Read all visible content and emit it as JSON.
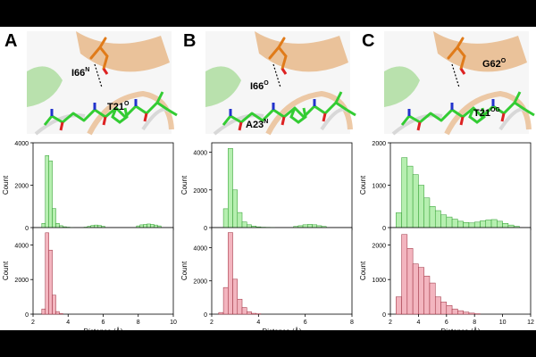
{
  "figure": {
    "background": "#000000",
    "panel_background": "#ffffff",
    "colors": {
      "green_fill": "#b6efb0",
      "green_stroke": "#2a9a2a",
      "red_fill": "#f3b5bf",
      "red_stroke": "#9a2a3a",
      "ribbon": "#e8b88a",
      "ligand_carbon": "#33cc33",
      "residue_carbon": "#e07b1a",
      "nitrogen": "#2233cc",
      "oxygen": "#dd2222"
    },
    "panels": [
      {
        "letter": "A",
        "structure_labels": [
          {
            "base": "I66",
            "sup": "N"
          },
          {
            "base": "T21",
            "sup": "O"
          }
        ]
      },
      {
        "letter": "B",
        "structure_labels": [
          {
            "base": "I66",
            "sup": "O"
          },
          {
            "base": "A23",
            "sup": "N"
          }
        ]
      },
      {
        "letter": "C",
        "structure_labels": [
          {
            "base": "G62",
            "sup": "O"
          },
          {
            "base": "T21",
            "sup": "OG"
          }
        ]
      }
    ]
  },
  "chart_data": [
    {
      "type": "bar",
      "panel": "A",
      "subplot": "top",
      "color": "green",
      "bin_width": 0.2,
      "x": [
        2.6,
        2.8,
        3.0,
        3.2,
        3.4,
        3.6,
        3.8,
        4.0,
        4.2,
        5.0,
        5.2,
        5.4,
        5.6,
        5.8,
        6.0,
        8.0,
        8.2,
        8.4,
        8.6,
        8.8,
        9.0,
        9.2
      ],
      "values": [
        200,
        3400,
        3150,
        900,
        200,
        90,
        40,
        20,
        10,
        20,
        60,
        100,
        120,
        100,
        60,
        80,
        130,
        150,
        170,
        150,
        120,
        80
      ],
      "xlim": [
        2,
        10
      ],
      "ylim": [
        0,
        4000
      ],
      "yticks": [
        0,
        2000,
        4000
      ],
      "xlabel": "",
      "ylabel": "Count"
    },
    {
      "type": "bar",
      "panel": "A",
      "subplot": "bottom",
      "color": "red",
      "bin_width": 0.2,
      "x": [
        2.6,
        2.8,
        3.0,
        3.2,
        3.4,
        3.6
      ],
      "values": [
        300,
        4700,
        3700,
        1100,
        150,
        30
      ],
      "xlim": [
        2,
        10
      ],
      "ylim": [
        0,
        5000
      ],
      "yticks": [
        0,
        2000,
        4000
      ],
      "xticks": [
        2,
        4,
        6,
        8,
        10
      ],
      "xlabel": "Distance (Å)",
      "ylabel": "Count"
    },
    {
      "type": "bar",
      "panel": "B",
      "subplot": "top",
      "color": "green",
      "bin_width": 0.2,
      "x": [
        2.6,
        2.8,
        3.0,
        3.2,
        3.4,
        3.6,
        3.8,
        4.0,
        4.2,
        4.4,
        4.6,
        5.6,
        5.8,
        6.0,
        6.2,
        6.4,
        6.6,
        6.8
      ],
      "values": [
        1000,
        4200,
        2000,
        800,
        300,
        150,
        80,
        40,
        20,
        15,
        10,
        60,
        100,
        150,
        170,
        150,
        100,
        60
      ],
      "xlim": [
        2,
        8
      ],
      "ylim": [
        0,
        4500
      ],
      "yticks": [
        0,
        2000,
        4000
      ],
      "xlabel": "",
      "ylabel": "Count"
    },
    {
      "type": "bar",
      "panel": "B",
      "subplot": "bottom",
      "color": "red",
      "bin_width": 0.2,
      "x": [
        2.4,
        2.6,
        2.8,
        3.0,
        3.2,
        3.4,
        3.6,
        3.8,
        4.0
      ],
      "values": [
        100,
        1600,
        4900,
        2100,
        900,
        400,
        150,
        50,
        20
      ],
      "xlim": [
        2,
        8
      ],
      "ylim": [
        0,
        5200
      ],
      "yticks": [
        0,
        2000,
        4000
      ],
      "xticks": [
        2,
        4,
        6,
        8
      ],
      "xlabel": "Distance (Å)",
      "ylabel": "Count"
    },
    {
      "type": "bar",
      "panel": "C",
      "subplot": "top",
      "color": "green",
      "bin_width": 0.4,
      "x": [
        2.6,
        3.0,
        3.4,
        3.8,
        4.2,
        4.6,
        5.0,
        5.4,
        5.8,
        6.2,
        6.6,
        7.0,
        7.4,
        7.8,
        8.2,
        8.6,
        9.0,
        9.4,
        9.8,
        10.2,
        10.6,
        11.0
      ],
      "values": [
        350,
        1650,
        1450,
        1250,
        1000,
        700,
        500,
        400,
        300,
        250,
        200,
        150,
        120,
        110,
        130,
        160,
        180,
        190,
        150,
        100,
        60,
        30
      ],
      "xlim": [
        2,
        12
      ],
      "ylim": [
        0,
        2000
      ],
      "yticks": [
        0,
        1000,
        2000
      ],
      "xlabel": "",
      "ylabel": "Count"
    },
    {
      "type": "bar",
      "panel": "C",
      "subplot": "bottom",
      "color": "red",
      "bin_width": 0.4,
      "x": [
        2.6,
        3.0,
        3.4,
        3.8,
        4.2,
        4.6,
        5.0,
        5.4,
        5.8,
        6.2,
        6.6,
        7.0,
        7.4,
        7.8,
        8.2
      ],
      "values": [
        500,
        2300,
        1900,
        1450,
        1350,
        1100,
        900,
        500,
        350,
        250,
        150,
        100,
        60,
        30,
        10
      ],
      "xlim": [
        2,
        12
      ],
      "ylim": [
        0,
        2500
      ],
      "yticks": [
        0,
        1000,
        2000
      ],
      "xticks": [
        2,
        4,
        6,
        8,
        10,
        12
      ],
      "xlabel": "Distance (Å)",
      "ylabel": "Count"
    }
  ]
}
